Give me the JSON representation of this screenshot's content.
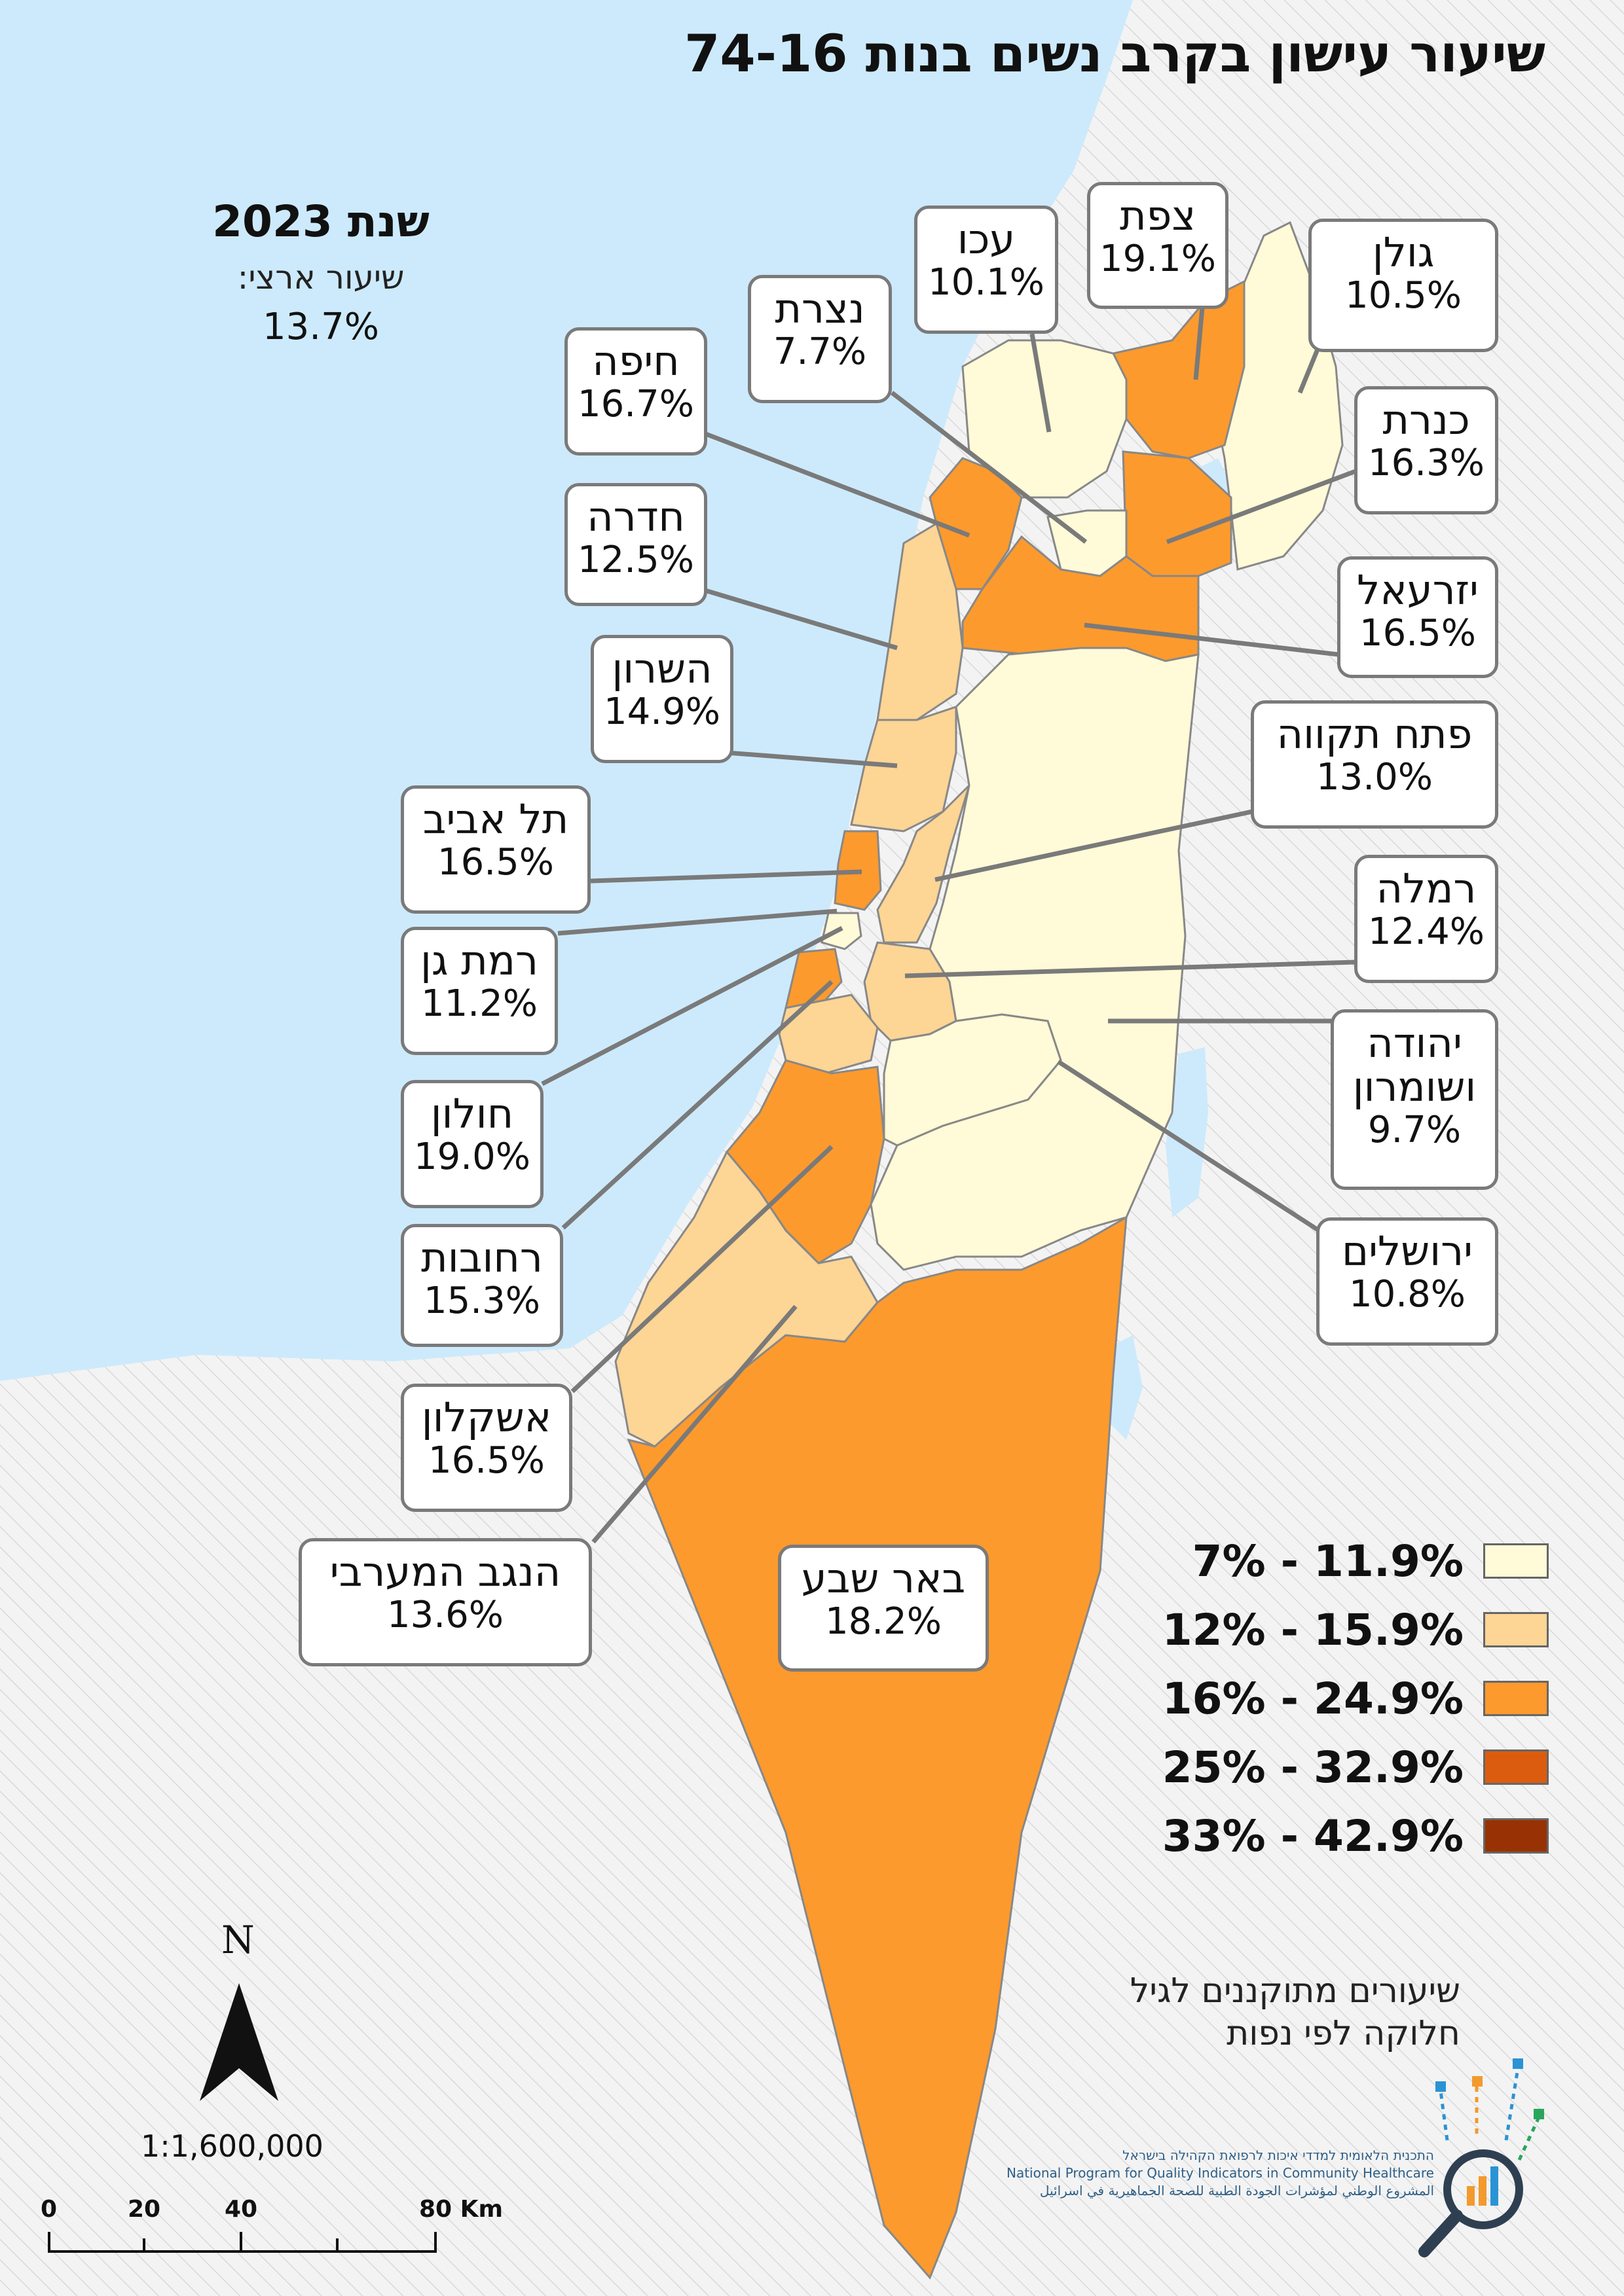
{
  "title": "שיעור עישון בקרב נשים בנות 74-16",
  "year_label": "שנת 2023",
  "national_rate_label": "שיעור ארצי:",
  "national_rate_value": "13.7%",
  "regions": [
    {
      "id": "golan",
      "name": "גולן",
      "value": "10.5%",
      "category": 0
    },
    {
      "id": "kinneret",
      "name": "כנרת",
      "value": "16.3%",
      "category": 2
    },
    {
      "id": "yizrael",
      "name": "יזרעאל",
      "value": "16.5%",
      "category": 2
    },
    {
      "id": "petah-tikva",
      "name": "פתח תקווה",
      "value": "13.0%",
      "category": 1
    },
    {
      "id": "ramla",
      "name": "רמלה",
      "value": "12.4%",
      "category": 1
    },
    {
      "id": "judea-samaria",
      "name": "יהודה ושומרון",
      "value": "9.7%",
      "category": 0
    },
    {
      "id": "jerusalem",
      "name": "ירושלים",
      "value": "10.8%",
      "category": 0
    },
    {
      "id": "tsfat",
      "name": "צפת",
      "value": "19.1%",
      "category": 2
    },
    {
      "id": "akko",
      "name": "עכו",
      "value": "10.1%",
      "category": 0
    },
    {
      "id": "nazareth",
      "name": "נצרת",
      "value": "7.7%",
      "category": 0
    },
    {
      "id": "haifa",
      "name": "חיפה",
      "value": "16.7%",
      "category": 2
    },
    {
      "id": "hadera",
      "name": "חדרה",
      "value": "12.5%",
      "category": 1
    },
    {
      "id": "sharon",
      "name": "השרון",
      "value": "14.9%",
      "category": 1
    },
    {
      "id": "tel-aviv",
      "name": "תל אביב",
      "value": "16.5%",
      "category": 2
    },
    {
      "id": "ramat-gan",
      "name": "רמת גן",
      "value": "11.2%",
      "category": 0
    },
    {
      "id": "holon",
      "name": "חולון",
      "value": "19.0%",
      "category": 2
    },
    {
      "id": "rehovot",
      "name": "רחובות",
      "value": "15.3%",
      "category": 1
    },
    {
      "id": "ashkelon",
      "name": "אשקלון",
      "value": "16.5%",
      "category": 2
    },
    {
      "id": "western-negev",
      "name": "הנגב המערבי",
      "value": "13.6%",
      "category": 1
    },
    {
      "id": "beer-sheva",
      "name": "באר שבע",
      "value": "18.2%",
      "category": 2
    }
  ],
  "legend": [
    {
      "label": "7% - 11.9%",
      "color": "#fffad7"
    },
    {
      "label": "12% - 15.9%",
      "color": "#fdd595"
    },
    {
      "label": "16% - 24.9%",
      "color": "#fd9a2d"
    },
    {
      "label": "25% - 32.9%",
      "color": "#dc5c0f"
    },
    {
      "label": "33% - 42.9%",
      "color": "#983204"
    }
  ],
  "colors": {
    "sea": "#cdeafc",
    "outside": "#f2f2f2",
    "border": "#888888"
  },
  "note_line1": "שיעורים מתוקננים לגיל",
  "note_line2": "חלוקה לפי נפות",
  "org_he": "התכנית הלאומית למדדי איכות לרפואת הקהילה בישראל",
  "org_en": "National Program for Quality Indicators in Community Healthcare",
  "org_ar": "المشروع الوطني لمؤشرات الجودة الطبية للصحة الجماهيرية في اسرائيل",
  "north_label": "N",
  "scale_text": "1:1,600,000",
  "scalebar_labels": [
    "0",
    "20",
    "40",
    "80 Km"
  ]
}
